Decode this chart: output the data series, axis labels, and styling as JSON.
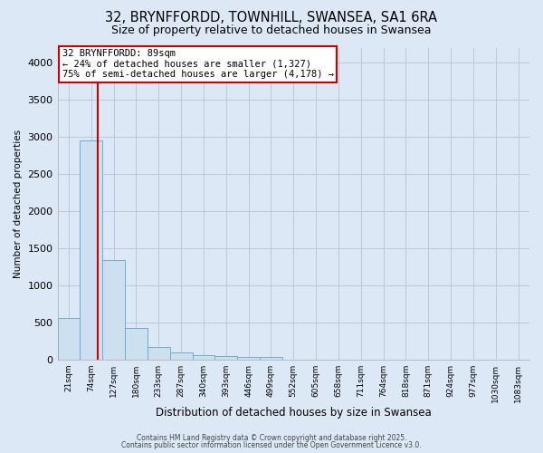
{
  "title1": "32, BRYNFFORDD, TOWNHILL, SWANSEA, SA1 6RA",
  "title2": "Size of property relative to detached houses in Swansea",
  "xlabel": "Distribution of detached houses by size in Swansea",
  "ylabel": "Number of detached properties",
  "categories": [
    "21sqm",
    "74sqm",
    "127sqm",
    "180sqm",
    "233sqm",
    "287sqm",
    "340sqm",
    "393sqm",
    "446sqm",
    "499sqm",
    "552sqm",
    "605sqm",
    "658sqm",
    "711sqm",
    "764sqm",
    "818sqm",
    "871sqm",
    "924sqm",
    "977sqm",
    "1030sqm",
    "1083sqm"
  ],
  "values": [
    560,
    2950,
    1340,
    430,
    175,
    100,
    60,
    45,
    35,
    30,
    0,
    0,
    0,
    0,
    0,
    0,
    0,
    0,
    0,
    0,
    0
  ],
  "bar_color": "#cce0f0",
  "bar_edge_color": "#6aaed6",
  "grid_color": "#c0c8d8",
  "background_color": "#dce8f5",
  "vline_color": "#cc0000",
  "annotation_text": "32 BRYNFFORDD: 89sqm\n← 24% of detached houses are smaller (1,327)\n75% of semi-detached houses are larger (4,178) →",
  "annotation_box_color": "#cc0000",
  "annotation_fontsize": 7.5,
  "ylim": [
    0,
    4200
  ],
  "yticks": [
    0,
    500,
    1000,
    1500,
    2000,
    2500,
    3000,
    3500,
    4000
  ],
  "title_fontsize": 10.5,
  "title2_fontsize": 9,
  "footer_line1": "Contains HM Land Registry data © Crown copyright and database right 2025.",
  "footer_line2": "Contains public sector information licensed under the Open Government Licence v3.0."
}
